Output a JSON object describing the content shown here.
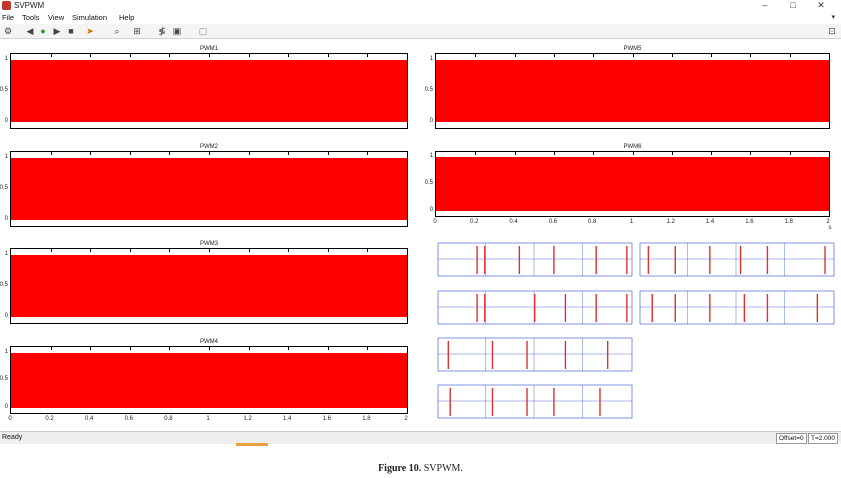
{
  "window": {
    "title": "SVPWM",
    "controls": [
      "–",
      "□",
      "✕"
    ]
  },
  "menu": [
    "File",
    "Tools",
    "View",
    "Simulation",
    "Help"
  ],
  "menu_arrow": "▾",
  "toolbar_icons": [
    "gear-icon",
    "step-back-icon",
    "run-icon",
    "step-forward-icon",
    "stop-icon",
    "highlight-icon",
    "zoom-icon",
    "fit-icon",
    "scale-icon",
    "legend-icon",
    "parameters-icon"
  ],
  "dock_icon": "⊡",
  "panels": [
    {
      "title": "PWM1",
      "yticks": [
        "1",
        "0.5",
        "0"
      ],
      "xticks": []
    },
    {
      "title": "PWM2",
      "yticks": [
        "1",
        "0.5",
        "0"
      ],
      "xticks": []
    },
    {
      "title": "PWM3",
      "yticks": [
        "1",
        "0.5",
        "0"
      ],
      "xticks": []
    },
    {
      "title": "PWM4",
      "yticks": [
        "1",
        "0.5",
        "0"
      ],
      "xticks": [
        "0",
        "0.2",
        "0.4",
        "0.6",
        "0.8",
        "1",
        "1.2",
        "1.4",
        "1.6",
        "1.8",
        "2"
      ]
    },
    {
      "title": "PWM5",
      "yticks": [
        "1",
        "0.5",
        "0"
      ],
      "xticks": []
    },
    {
      "title": "PWM6",
      "yticks": [
        "1",
        "0.5",
        "0"
      ],
      "xticks": [
        "0",
        "0.2",
        "0.4",
        "0.6",
        "0.8",
        "1",
        "1.2",
        "1.4",
        "1.6",
        "1.8",
        "2"
      ]
    }
  ],
  "x_unit": "s",
  "colors": {
    "signal": "#ff0000",
    "thumb_trace": "#e03030",
    "thumb_axis": "#3050d0"
  },
  "statusbar": {
    "left": "Ready",
    "offset": "Offset=0",
    "time": "T=2.000"
  },
  "caption": {
    "label": "Figure 10.",
    "text": "SVPWM."
  }
}
